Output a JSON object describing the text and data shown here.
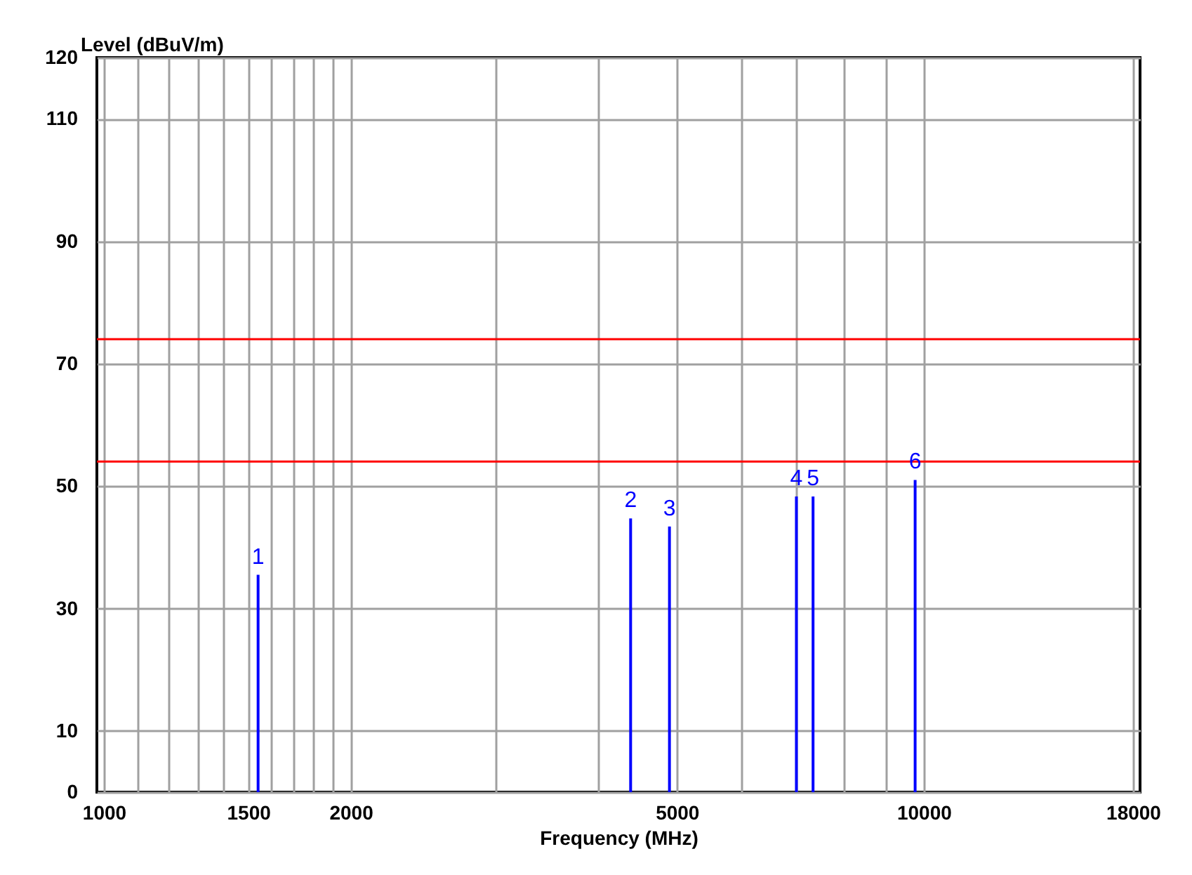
{
  "chart_data": {
    "type": "bar",
    "xlabel": "Frequency (MHz)",
    "ylabel": "Level (dBuV/m)",
    "x": [
      1542,
      4390,
      4896,
      6993,
      7328,
      9761
    ],
    "series": [
      {
        "color": "#0000ff",
        "values": [
          35.5,
          44.7,
          43.4,
          48.3,
          48.3,
          51.0
        ]
      }
    ],
    "log": "x",
    "xlim": [
      1000,
      18000
    ],
    "ylim": [
      0,
      120
    ],
    "xticks": [
      1000,
      {
        "value": 1100,
        "label": null
      },
      {
        "value": 1200,
        "label": null
      },
      {
        "value": 1300,
        "label": null
      },
      {
        "value": 1400,
        "label": null
      },
      1500,
      {
        "value": 1600,
        "label": null
      },
      {
        "value": 1700,
        "label": null
      },
      {
        "value": 1800,
        "label": null
      },
      {
        "value": 1900,
        "label": null
      },
      2000,
      {
        "value": 3000,
        "label": null
      },
      {
        "value": 4000,
        "label": null
      },
      5000,
      {
        "value": 6000,
        "label": null
      },
      {
        "value": 7000,
        "label": null
      },
      {
        "value": 8000,
        "label": null
      },
      {
        "value": 9000,
        "label": null
      },
      10000,
      18000
    ],
    "yticks": [
      0,
      10,
      30,
      50,
      70,
      90,
      110,
      120
    ],
    "grid": true,
    "legend": false,
    "ref_lines": [
      {
        "axis": "y",
        "value": 74,
        "color": "#ff0000"
      },
      {
        "axis": "y",
        "value": 54,
        "color": "#ff0000"
      }
    ],
    "annotations": [
      {
        "text": "1",
        "x": 1542,
        "y": 35.5
      },
      {
        "text": "2",
        "x": 4390,
        "y": 44.7
      },
      {
        "text": "3",
        "x": 4896,
        "y": 43.4
      },
      {
        "text": "4",
        "x": 6993,
        "y": 48.3
      },
      {
        "text": "5",
        "x": 7328,
        "y": 48.3
      },
      {
        "text": "6",
        "x": 9761,
        "y": 51.0
      }
    ]
  }
}
